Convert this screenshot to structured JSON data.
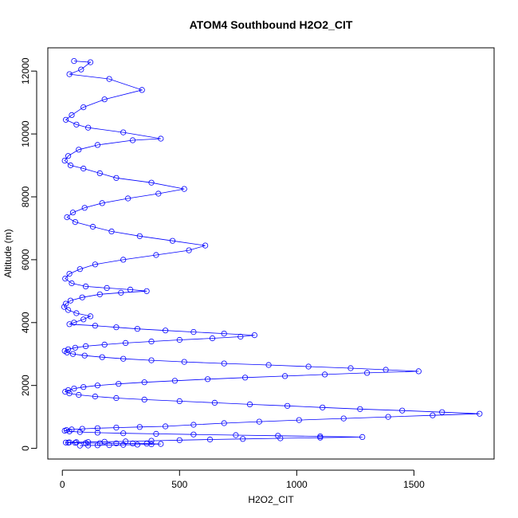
{
  "chart_data": {
    "type": "scatter",
    "title": "ATOM4 Southbound H2O2_CIT",
    "xlabel": "H2O2_CIT",
    "ylabel": "Altitude (m)",
    "xlim": [
      -62,
      1842
    ],
    "ylim": [
      -340,
      12740
    ],
    "x_ticks": [
      0,
      500,
      1000,
      1500
    ],
    "y_ticks": [
      0,
      2000,
      4000,
      6000,
      8000,
      10000,
      12000
    ],
    "series": [
      {
        "color": "#0000ff",
        "marker": "open-circle",
        "connected": true,
        "x": [
          50,
          120,
          80,
          30,
          200,
          340,
          180,
          90,
          40,
          15,
          60,
          110,
          260,
          420,
          300,
          150,
          70,
          25,
          10,
          35,
          90,
          160,
          230,
          380,
          520,
          410,
          280,
          170,
          95,
          45,
          20,
          55,
          130,
          210,
          330,
          470,
          610,
          540,
          400,
          260,
          140,
          75,
          30,
          12,
          40,
          100,
          190,
          290,
          360,
          250,
          160,
          85,
          35,
          15,
          8,
          25,
          60,
          120,
          90,
          50,
          30,
          140,
          230,
          320,
          440,
          560,
          690,
          820,
          760,
          640,
          500,
          380,
          270,
          180,
          100,
          55,
          25,
          10,
          20,
          45,
          95,
          170,
          260,
          380,
          520,
          690,
          880,
          1050,
          1230,
          1380,
          1520,
          1300,
          1120,
          950,
          780,
          620,
          480,
          350,
          240,
          150,
          90,
          50,
          25,
          12,
          30,
          70,
          140,
          230,
          350,
          500,
          650,
          800,
          960,
          1110,
          1270,
          1450,
          1620,
          1780,
          1580,
          1390,
          1200,
          1010,
          840,
          690,
          560,
          440,
          330,
          230,
          150,
          85,
          40,
          18,
          10,
          30,
          75,
          150,
          260,
          400,
          560,
          740,
          920,
          1100,
          1280,
          1100,
          930,
          770,
          630,
          500,
          380,
          270,
          180,
          110,
          60,
          30,
          15,
          25,
          55,
          100,
          160,
          230,
          300,
          360,
          420,
          380,
          320,
          260,
          200,
          150,
          110,
          75
        ],
        "y": [
          12320,
          12280,
          12050,
          11900,
          11750,
          11400,
          11100,
          10850,
          10600,
          10450,
          10300,
          10200,
          10050,
          9850,
          9800,
          9650,
          9500,
          9300,
          9150,
          9000,
          8900,
          8750,
          8600,
          8450,
          8250,
          8100,
          7950,
          7800,
          7650,
          7500,
          7350,
          7200,
          7050,
          6900,
          6750,
          6600,
          6450,
          6300,
          6150,
          6000,
          5850,
          5700,
          5550,
          5400,
          5250,
          5150,
          5100,
          5050,
          5000,
          4950,
          4900,
          4800,
          4700,
          4600,
          4500,
          4400,
          4300,
          4200,
          4100,
          4000,
          3950,
          3900,
          3850,
          3800,
          3750,
          3700,
          3650,
          3600,
          3550,
          3500,
          3450,
          3400,
          3350,
          3300,
          3250,
          3200,
          3150,
          3100,
          3050,
          3000,
          2950,
          2900,
          2850,
          2800,
          2750,
          2700,
          2650,
          2600,
          2550,
          2500,
          2450,
          2400,
          2350,
          2300,
          2250,
          2200,
          2150,
          2100,
          2050,
          2000,
          1950,
          1900,
          1850,
          1800,
          1750,
          1700,
          1650,
          1600,
          1550,
          1500,
          1450,
          1400,
          1350,
          1300,
          1250,
          1200,
          1150,
          1100,
          1050,
          1000,
          950,
          900,
          850,
          800,
          750,
          700,
          680,
          660,
          640,
          620,
          600,
          580,
          560,
          540,
          520,
          500,
          480,
          460,
          440,
          420,
          400,
          380,
          360,
          340,
          320,
          300,
          280,
          260,
          240,
          220,
          210,
          200,
          195,
          190,
          185,
          180,
          175,
          170,
          165,
          160,
          155,
          150,
          140,
          130,
          120,
          110,
          100,
          95,
          90,
          85
        ]
      }
    ]
  }
}
